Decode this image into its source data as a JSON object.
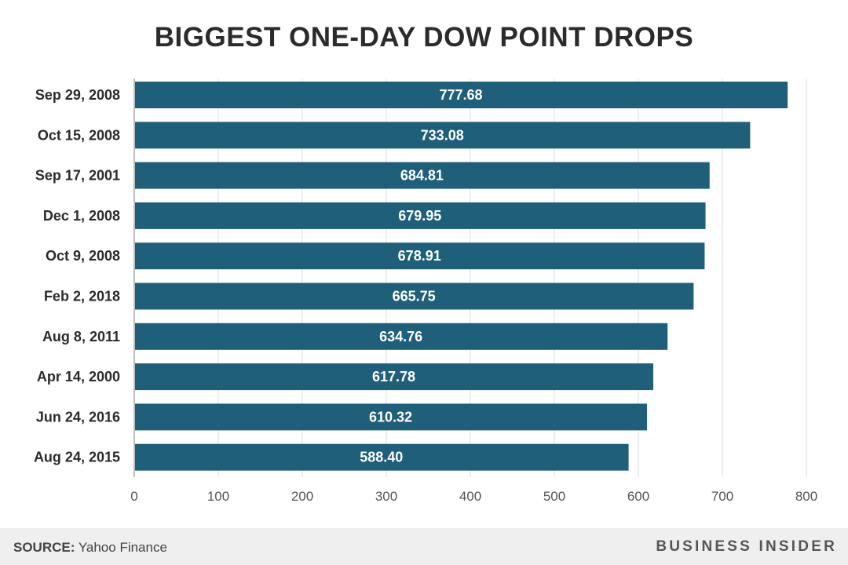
{
  "chart_data": {
    "type": "bar",
    "orientation": "horizontal",
    "title": "BIGGEST ONE-DAY DOW POINT DROPS",
    "categories": [
      "Sep 29, 2008",
      "Oct 15, 2008",
      "Sep 17, 2001",
      "Dec 1, 2008",
      "Oct 9, 2008",
      "Feb 2, 2018",
      "Aug 8, 2011",
      "Apr 14, 2000",
      "Jun 24, 2016",
      "Aug 24, 2015"
    ],
    "values": [
      777.68,
      733.08,
      684.81,
      679.95,
      678.91,
      665.75,
      634.76,
      617.78,
      610.32,
      588.4
    ],
    "value_labels": [
      "777.68",
      "733.08",
      "684.81",
      "679.95",
      "678.91",
      "665.75",
      "634.76",
      "617.78",
      "610.32",
      "588.40"
    ],
    "xlim": [
      0,
      800
    ],
    "xticks": [
      "0",
      "100",
      "200",
      "300",
      "400",
      "500",
      "600",
      "700",
      "800"
    ],
    "grid": true,
    "bar_color": "#1f5f7a"
  },
  "footer": {
    "source_label": "SOURCE:",
    "source_text": " Yahoo Finance",
    "brand": "BUSINESS INSIDER"
  }
}
